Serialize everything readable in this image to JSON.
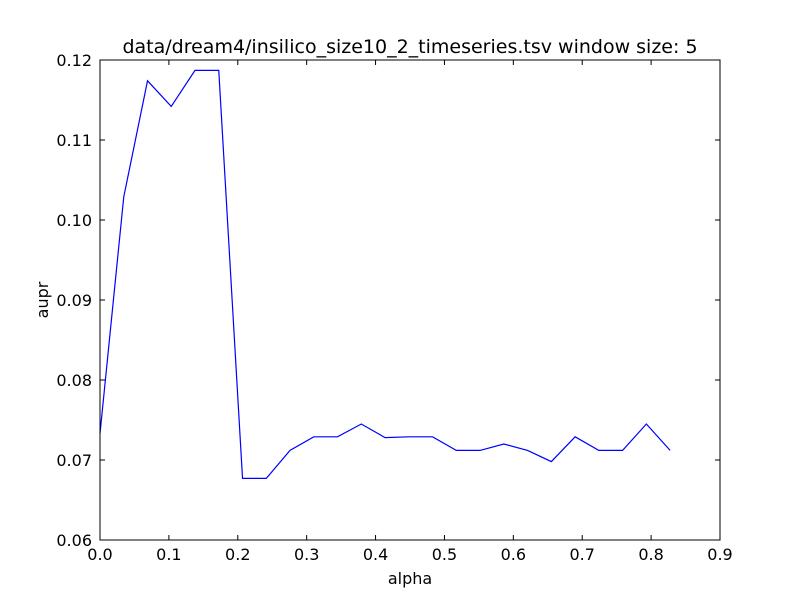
{
  "chart_data": {
    "type": "line",
    "title": "data/dream4/insilico_size10_2_timeseries.tsv window size: 5",
    "xlabel": "alpha",
    "ylabel": "aupr",
    "xlim": [
      0.0,
      0.9
    ],
    "ylim": [
      0.06,
      0.12
    ],
    "x_ticks": [
      "0.0",
      "0.1",
      "0.2",
      "0.3",
      "0.4",
      "0.5",
      "0.6",
      "0.7",
      "0.8",
      "0.9"
    ],
    "y_ticks": [
      "0.06",
      "0.07",
      "0.08",
      "0.09",
      "0.10",
      "0.11",
      "0.12"
    ],
    "grid": false,
    "line_color": "#0000ff",
    "series": [
      {
        "x": [
          0.0,
          0.0345,
          0.069,
          0.1034,
          0.1379,
          0.1724,
          0.2069,
          0.2414,
          0.2759,
          0.3103,
          0.3448,
          0.3793,
          0.4138,
          0.4483,
          0.4828,
          0.5172,
          0.5517,
          0.5862,
          0.6207,
          0.6552,
          0.6897,
          0.7241,
          0.7586,
          0.7931,
          0.8276
        ],
        "values": [
          0.0733,
          0.1029,
          0.1174,
          0.1142,
          0.1187,
          0.1187,
          0.0677,
          0.0677,
          0.0712,
          0.0729,
          0.0729,
          0.0745,
          0.0728,
          0.0729,
          0.0729,
          0.0712,
          0.0712,
          0.072,
          0.0712,
          0.0698,
          0.0729,
          0.0712,
          0.0712,
          0.0745,
          0.0712
        ]
      }
    ]
  }
}
